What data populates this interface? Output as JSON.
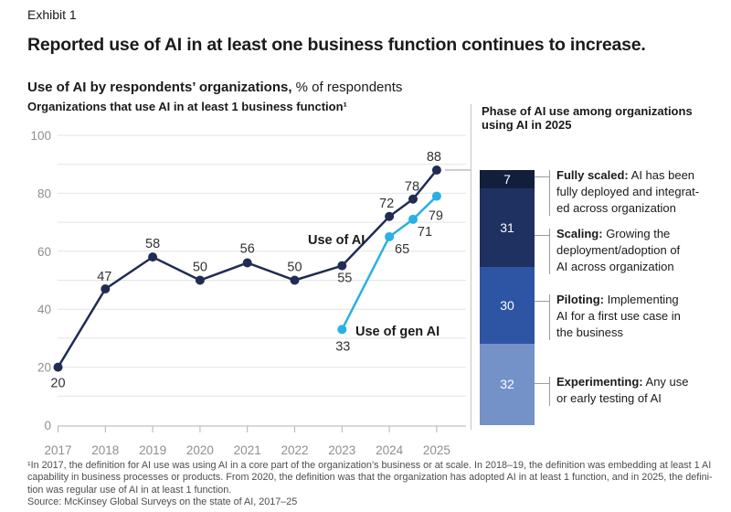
{
  "page": {
    "exhibit_label": "Exhibit 1",
    "title": "Reported use of AI in at least one business function continues to increase.",
    "subtitle_bold": "Use of AI by respondents’ organizations,",
    "subtitle_regular": " % of respondents"
  },
  "chart_data": {
    "type": "line",
    "title": "Organizations that use AI in at least 1 business function¹",
    "x_labels": [
      "2017",
      "2018",
      "2019",
      "2020",
      "2021",
      "2022",
      "2023",
      "2024",
      "2025"
    ],
    "y_ticks": [
      0,
      20,
      40,
      60,
      80,
      100
    ],
    "ylim": [
      0,
      100
    ],
    "grid_step": 10,
    "grid_on": true,
    "series": [
      {
        "name": "Use of AI",
        "color": "#212c55",
        "x": [
          2017,
          2018,
          2019,
          2020,
          2021,
          2022,
          2023,
          2024,
          2024.5,
          2025
        ],
        "values": [
          20,
          47,
          58,
          50,
          56,
          50,
          55,
          72,
          78,
          88
        ]
      },
      {
        "name": "Use of gen AI",
        "color": "#29b0e6",
        "x": [
          2023,
          2024,
          2024.5,
          2025
        ],
        "values": [
          33,
          65,
          71,
          79
        ]
      }
    ]
  },
  "phase_panel": {
    "title_lines": [
      "Phase of AI use among organizations",
      "using AI in 2025"
    ],
    "bar_total_pct": 100,
    "phases": [
      {
        "value": 7,
        "color": "#111f3d",
        "term": "Fully scaled:",
        "desc_lines": [
          "AI has been",
          "fully deployed and integrat-",
          "ed across organization"
        ]
      },
      {
        "value": 31,
        "color": "#1e3160",
        "term": "Scaling:",
        "desc_lines": [
          "Growing the",
          "deployment/adoption of",
          "AI across organization"
        ]
      },
      {
        "value": 30,
        "color": "#2e55a3",
        "term": "Piloting:",
        "desc_lines": [
          "Implementing",
          "AI for a first use case in",
          "the business"
        ]
      },
      {
        "value": 32,
        "color": "#7592c8",
        "term": "Experimenting:",
        "desc_lines": [
          "Any use",
          "or early testing of AI"
        ]
      }
    ]
  },
  "footnotes": {
    "lines": [
      "¹In 2017, the definition for AI use was using AI in a core part of the organization’s business or at scale. In 2018–19, the definition was embedding at least 1 AI",
      "capability in business processes or products. From 2020, the definition was that the organization has adopted AI in at least 1 function, and in 2025, the defini-",
      "tion was regular use of AI in at least 1 function.",
      "Source: McKinsey Global Surveys on the state of AI, 2017–25"
    ]
  }
}
